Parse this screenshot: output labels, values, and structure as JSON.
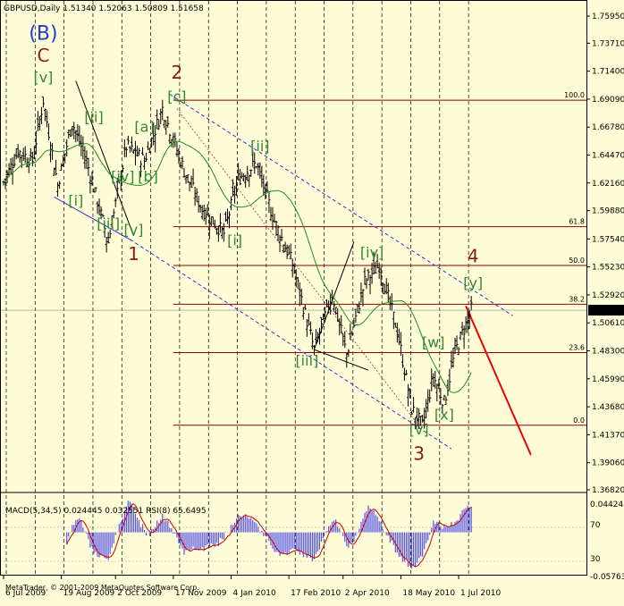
{
  "header": {
    "symbol_info": "GBPUSD,Daily  1.51340 1.52063 1.50809 1.51658",
    "macd_info": "MACD(5,34,5) 0.024445 0.032551  RSI(8) 65.6495",
    "copyright": "MetaTrader, © 2001-2009 MetaQuotes Software Corp."
  },
  "colors": {
    "background": "#fefdd8",
    "bars": "#000000",
    "ma": "#228b22",
    "fib": "#8b0000",
    "channel": "#3333cc",
    "wave_green": "#2e8b2e",
    "wave_red": "#8b1a1a",
    "wave_blue": "#1f3fcc",
    "forecast": "#ee0000",
    "macd_hist": "#5555ee",
    "macd_signal": "#cc0000"
  },
  "chart_data": {
    "type": "ohlc",
    "price_axis": {
      "ylim": [
        1.3682,
        1.7595
      ],
      "ticks": [
        "1.75950",
        "1.73710",
        "1.71400",
        "1.69090",
        "1.66780",
        "1.64470",
        "1.62160",
        "1.59880",
        "1.57540",
        "1.55230",
        "1.52920",
        "1.50610",
        "1.48300",
        "1.45990",
        "1.43680",
        "1.41370",
        "1.39060",
        "1.36820"
      ],
      "current_price": "1.51658"
    },
    "time_axis": {
      "labels": [
        "6 Jul 2009",
        "19 Aug 2009",
        "2 Oct 2009",
        "17 Nov 2009",
        "4 Jan 2010",
        "17 Feb 2010",
        "2 Apr 2010",
        "18 May 2010",
        "1 Jul 2010"
      ],
      "label_bar_index": [
        0,
        32,
        62,
        94,
        126,
        158,
        188,
        220,
        252
      ]
    },
    "bars_count": 260,
    "price_path": [
      [
        0,
        1.622
      ],
      [
        8,
        1.648
      ],
      [
        16,
        1.64
      ],
      [
        22,
        1.69
      ],
      [
        30,
        1.62
      ],
      [
        38,
        1.672
      ],
      [
        46,
        1.64
      ],
      [
        58,
        1.573
      ],
      [
        68,
        1.652
      ],
      [
        78,
        1.64
      ],
      [
        88,
        1.683
      ],
      [
        100,
        1.632
      ],
      [
        110,
        1.6
      ],
      [
        122,
        1.58
      ],
      [
        130,
        1.625
      ],
      [
        140,
        1.638
      ],
      [
        150,
        1.59
      ],
      [
        160,
        1.555
      ],
      [
        172,
        1.484
      ],
      [
        182,
        1.53
      ],
      [
        190,
        1.48
      ],
      [
        200,
        1.54
      ],
      [
        208,
        1.554
      ],
      [
        218,
        1.5
      ],
      [
        226,
        1.435
      ],
      [
        232,
        1.421
      ],
      [
        238,
        1.462
      ],
      [
        244,
        1.44
      ],
      [
        250,
        1.482
      ],
      [
        256,
        1.505
      ],
      [
        259,
        1.517
      ]
    ],
    "fibonacci": [
      {
        "label": "100.0",
        "price": 1.69
      },
      {
        "label": "61.8",
        "price": 1.5855
      },
      {
        "label": "50.0",
        "price": 1.5535
      },
      {
        "label": "38.2",
        "price": 1.5215
      },
      {
        "label": "23.6",
        "price": 1.4815
      },
      {
        "label": "0.0",
        "price": 1.4215
      }
    ],
    "wave_labels": [
      {
        "text": "(B)",
        "bar": 22,
        "price": 1.74,
        "style": "blue"
      },
      {
        "text": "C",
        "bar": 22,
        "price": 1.722,
        "style": "red"
      },
      {
        "text": "[v]",
        "bar": 22,
        "price": 1.705,
        "style": "green"
      },
      {
        "text": "[ii]",
        "bar": 50,
        "price": 1.672,
        "style": "green"
      },
      {
        "text": "[a]",
        "bar": 78,
        "price": 1.664,
        "style": "green"
      },
      {
        "text": "2",
        "bar": 96,
        "price": 1.708,
        "style": "red"
      },
      {
        "text": "[c]",
        "bar": 96,
        "price": 1.689,
        "style": "green"
      },
      {
        "text": "[i]",
        "bar": 40,
        "price": 1.603,
        "style": "green"
      },
      {
        "text": "[iv]",
        "bar": 66,
        "price": 1.623,
        "style": "green"
      },
      {
        "text": "[b]",
        "bar": 80,
        "price": 1.623,
        "style": "green"
      },
      {
        "text": "[iii]",
        "bar": 58,
        "price": 1.584,
        "style": "green"
      },
      {
        "text": "[v]",
        "bar": 72,
        "price": 1.579,
        "style": "green"
      },
      {
        "text": "1",
        "bar": 72,
        "price": 1.558,
        "style": "red"
      },
      {
        "text": "[ii]",
        "bar": 142,
        "price": 1.648,
        "style": "green"
      },
      {
        "text": "[i]",
        "bar": 128,
        "price": 1.57,
        "style": "green"
      },
      {
        "text": "[iii]",
        "bar": 168,
        "price": 1.471,
        "style": "green"
      },
      {
        "text": "[iv]",
        "bar": 204,
        "price": 1.56,
        "style": "green"
      },
      {
        "text": "4",
        "bar": 260,
        "price": 1.556,
        "style": "red"
      },
      {
        "text": "[y]",
        "bar": 260,
        "price": 1.535,
        "style": "green"
      },
      {
        "text": "[w]",
        "bar": 238,
        "price": 1.486,
        "style": "green"
      },
      {
        "text": "[x]",
        "bar": 244,
        "price": 1.426,
        "style": "green"
      },
      {
        "text": "[v]",
        "bar": 230,
        "price": 1.414,
        "style": "green"
      },
      {
        "text": "3",
        "bar": 230,
        "price": 1.393,
        "style": "red"
      }
    ],
    "macd_panel": {
      "ticks": [
        "0.04424",
        "70",
        "30",
        "-0.05763"
      ],
      "ylim": [
        -0.05763,
        0.04424
      ]
    }
  }
}
